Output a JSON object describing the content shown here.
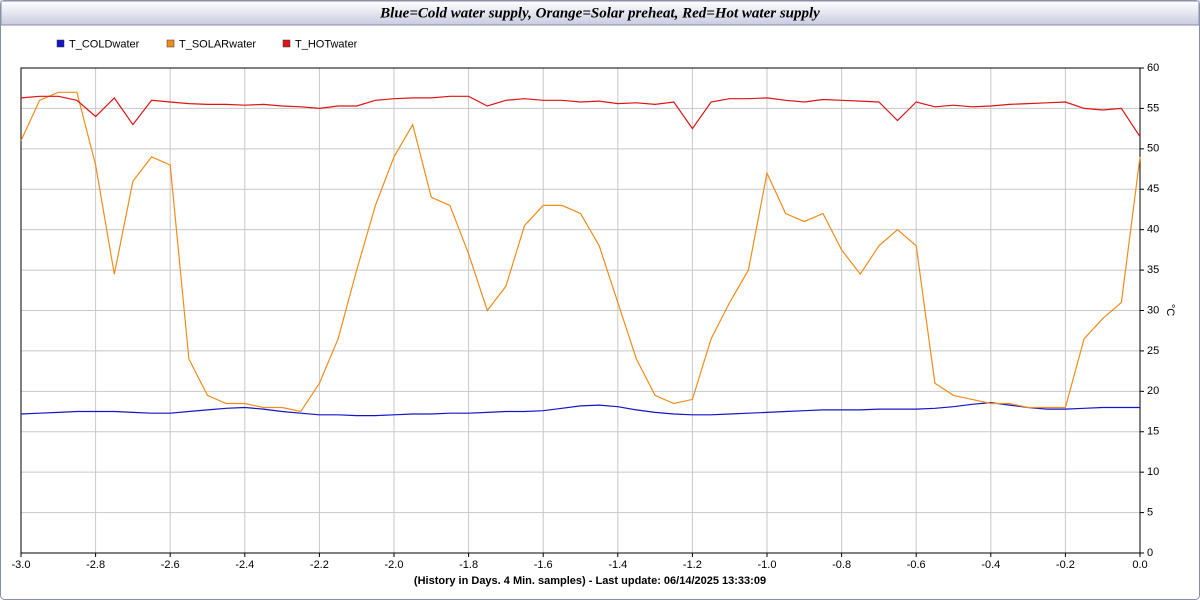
{
  "chart_data": {
    "type": "line",
    "title": "Blue=Cold water supply, Orange=Solar preheat, Red=Hot water supply",
    "x_label": "(History in Days. 4 Min. samples) - Last update: 06/14/2025 13:33:09",
    "y_label": "°C",
    "x": [
      -3,
      -2.95,
      -2.9,
      -2.85,
      -2.8,
      -2.75,
      -2.7,
      -2.65,
      -2.6,
      -2.55,
      -2.5,
      -2.45,
      -2.4,
      -2.35,
      -2.3,
      -2.25,
      -2.2,
      -2.15,
      -2.1,
      -2.05,
      -2,
      -1.95,
      -1.9,
      -1.85,
      -1.8,
      -1.75,
      -1.7,
      -1.65,
      -1.6,
      -1.55,
      -1.5,
      -1.45,
      -1.4,
      -1.35,
      -1.3,
      -1.25,
      -1.2,
      -1.15,
      -1.1,
      -1.05,
      -1,
      -0.95,
      -0.9,
      -0.85,
      -0.8,
      -0.75,
      -0.7,
      -0.65,
      -0.6,
      -0.55,
      -0.5,
      -0.45,
      -0.4,
      -0.35,
      -0.3,
      -0.25,
      -0.2,
      -0.15,
      -0.1,
      -0.05,
      0
    ],
    "series": [
      {
        "name": "T_COLDwater",
        "color": "#1414c8",
        "values": [
          17.2,
          17.3,
          17.4,
          17.5,
          17.5,
          17.5,
          17.4,
          17.3,
          17.3,
          17.5,
          17.7,
          17.9,
          18.0,
          17.8,
          17.5,
          17.3,
          17.1,
          17.1,
          17.0,
          17.0,
          17.1,
          17.2,
          17.2,
          17.3,
          17.3,
          17.4,
          17.5,
          17.5,
          17.6,
          17.9,
          18.2,
          18.3,
          18.1,
          17.7,
          17.4,
          17.2,
          17.1,
          17.1,
          17.2,
          17.3,
          17.4,
          17.5,
          17.6,
          17.7,
          17.7,
          17.7,
          17.8,
          17.8,
          17.8,
          17.9,
          18.1,
          18.4,
          18.6,
          18.3,
          18.0,
          17.8,
          17.8,
          17.9,
          18.0,
          18.0,
          18.0
        ]
      },
      {
        "name": "T_SOLARwater",
        "color": "#f08c1a",
        "values": [
          51,
          56,
          57,
          57,
          48,
          34.5,
          46,
          49,
          48,
          24,
          19.5,
          18.5,
          18.5,
          18,
          18,
          17.5,
          21,
          26.5,
          35,
          43,
          49,
          53,
          44,
          43,
          37,
          30,
          33,
          40.5,
          43,
          43,
          42,
          38,
          31,
          24,
          19.5,
          18.5,
          19,
          26.5,
          31,
          35,
          47,
          42,
          41,
          42,
          37.5,
          34.5,
          38,
          40,
          38,
          21,
          19.5,
          19,
          18.5,
          18.5,
          18,
          18,
          18,
          26.5,
          29,
          31,
          49
        ]
      },
      {
        "name": "T_HOTwater",
        "color": "#dc1414",
        "values": [
          56.3,
          56.5,
          56.5,
          56,
          54,
          56.3,
          53,
          56,
          55.8,
          55.6,
          55.5,
          55.5,
          55.4,
          55.5,
          55.3,
          55.2,
          55,
          55.3,
          55.3,
          56,
          56.2,
          56.3,
          56.3,
          56.5,
          56.5,
          55.3,
          56,
          56.2,
          56,
          56,
          55.8,
          55.9,
          55.6,
          55.7,
          55.5,
          55.8,
          52.5,
          55.8,
          56.2,
          56.2,
          56.3,
          56,
          55.8,
          56.1,
          56,
          55.9,
          55.8,
          53.5,
          55.8,
          55.2,
          55.4,
          55.2,
          55.3,
          55.5,
          55.6,
          55.7,
          55.8,
          55,
          54.8,
          55,
          51.5
        ]
      }
    ],
    "xlim": [
      -3,
      0
    ],
    "xticks": [
      {
        "value": -3,
        "label": "-3.0"
      },
      -2.8,
      -2.6,
      -2.4,
      -2.2,
      {
        "value": -2,
        "label": "-2.0"
      },
      -1.8,
      -1.6,
      -1.4,
      -1.2,
      {
        "value": -1,
        "label": "-1.0"
      },
      -0.8,
      -0.6,
      -0.4,
      -0.2,
      {
        "value": 0,
        "label": "0.0"
      }
    ],
    "ylim": [
      0,
      60
    ],
    "yticks": [
      0,
      5,
      10,
      15,
      20,
      25,
      30,
      35,
      40,
      45,
      50,
      55,
      60
    ],
    "grid": true,
    "legend": "top-left"
  }
}
